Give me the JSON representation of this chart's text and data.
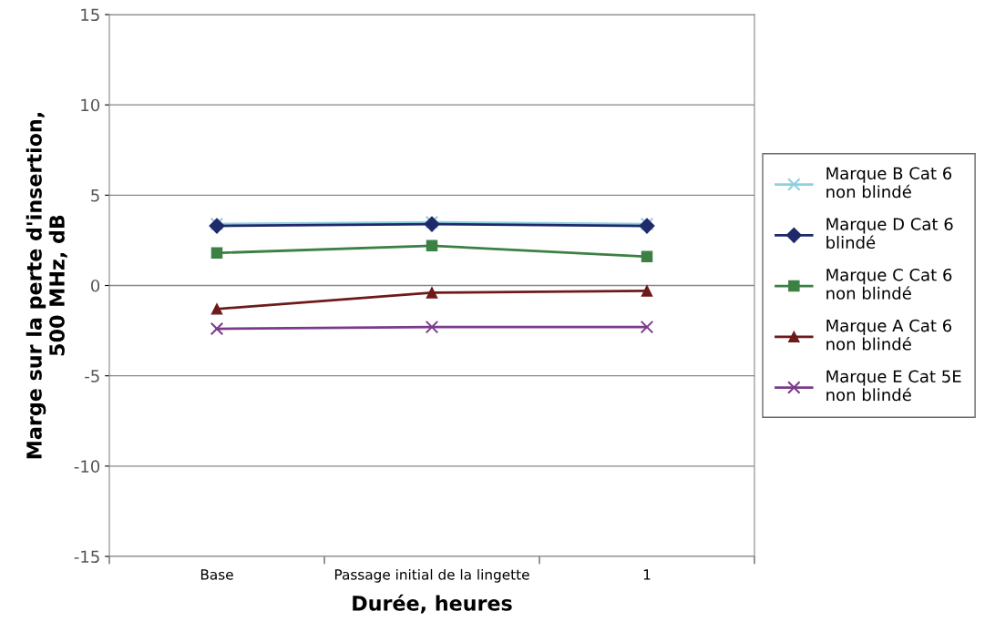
{
  "chart_data": {
    "type": "line",
    "xlabel": "Durée, heures",
    "ylabel": "Marge sur la perte d'insertion,\n500 MHz, dB",
    "categories": [
      "Base",
      "Passage initial de la lingette",
      "1"
    ],
    "series": [
      {
        "name": "Marque B Cat 6\nnon blindé",
        "color": "#8fcfe0",
        "marker": "cross",
        "values": [
          3.4,
          3.5,
          3.4
        ]
      },
      {
        "name": "Marque D Cat 6\nblindé",
        "color": "#1f2a6b",
        "marker": "diamond",
        "values": [
          3.3,
          3.4,
          3.3
        ]
      },
      {
        "name": "Marque C Cat 6\nnon blindé",
        "color": "#3c8044",
        "marker": "square",
        "values": [
          1.8,
          2.2,
          1.6
        ]
      },
      {
        "name": "Marque A Cat 6\nnon blindé",
        "color": "#6e1a1a",
        "marker": "triangle",
        "values": [
          -1.3,
          -0.4,
          -0.3
        ]
      },
      {
        "name": "Marque E Cat 5E\nnon blindé",
        "color": "#7b3b8c",
        "marker": "cross",
        "values": [
          -2.4,
          -2.3,
          -2.3
        ]
      }
    ],
    "ylim": [
      -15,
      15
    ],
    "yticks": [
      -15,
      -10,
      -5,
      0,
      5,
      10,
      15
    ],
    "grid": "y",
    "legend": "right",
    "line_style": "solid"
  }
}
